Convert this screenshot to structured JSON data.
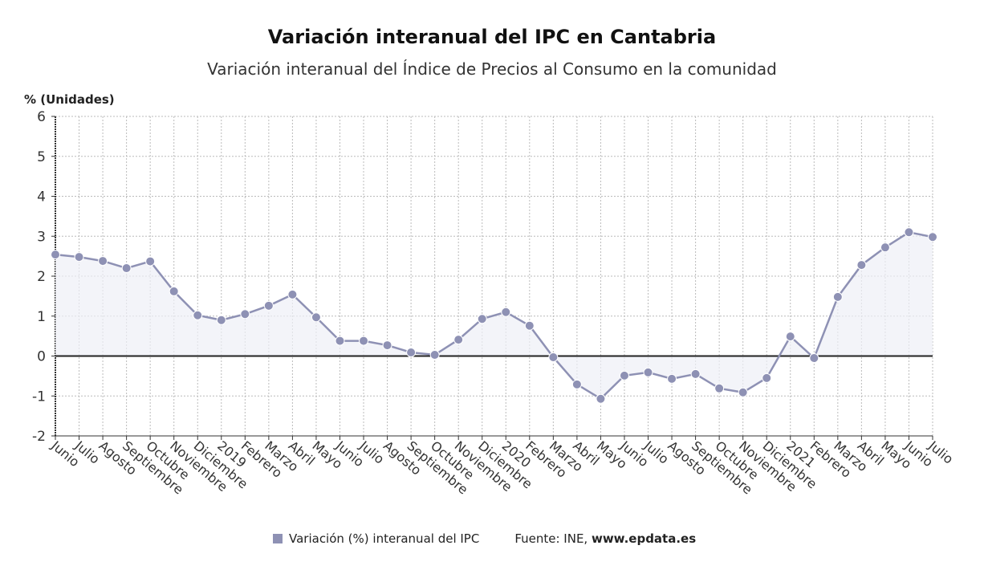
{
  "chart_data": {
    "type": "line",
    "title": "Variación interanual del IPC en Cantabria",
    "subtitle": "Variación interanual del Índice de Precios al Consumo en la comunidad",
    "ylabel": "% (Unidades)",
    "xlabel": "",
    "ylim": [
      -2,
      6
    ],
    "yticks": [
      "6",
      "5",
      "4",
      "3",
      "2",
      "1",
      "0",
      "-1",
      "-2"
    ],
    "grid": true,
    "area_fill": true,
    "legend_position": "bottom",
    "categories": [
      "Junio",
      "Julio",
      "Agosto",
      "Septiembre",
      "Octubre",
      "Noviembre",
      "Diciembre",
      "2019",
      "Febrero",
      "Marzo",
      "Abril",
      "Mayo",
      "Junio",
      "Julio",
      "Agosto",
      "Septiembre",
      "Octubre",
      "Noviembre",
      "Diciembre",
      "2020",
      "Febrero",
      "Marzo",
      "Abril",
      "Mayo",
      "Junio",
      "Julio",
      "Agosto",
      "Septiembre",
      "Octubre",
      "Noviembre",
      "Diciembre",
      "2021",
      "Febrero",
      "Marzo",
      "Abril",
      "Mayo",
      "Junio",
      "Julio"
    ],
    "series": [
      {
        "name": "Variación (%) interanual del IPC",
        "color": "#8e91b4",
        "values": [
          2.54,
          2.48,
          2.38,
          2.2,
          2.37,
          1.62,
          1.02,
          0.9,
          1.05,
          1.26,
          1.54,
          0.97,
          0.38,
          0.38,
          0.27,
          0.09,
          0.03,
          0.41,
          0.93,
          1.1,
          0.76,
          -0.03,
          -0.71,
          -1.07,
          -0.49,
          -0.41,
          -0.57,
          -0.45,
          -0.81,
          -0.91,
          -0.55,
          0.49,
          -0.05,
          1.48,
          2.28,
          2.72,
          3.1,
          2.98
        ]
      }
    ]
  },
  "legend": {
    "label": "Variación (%) interanual del IPC"
  },
  "source": {
    "prefix": "Fuente: INE, ",
    "site": "www.epdata.es"
  }
}
